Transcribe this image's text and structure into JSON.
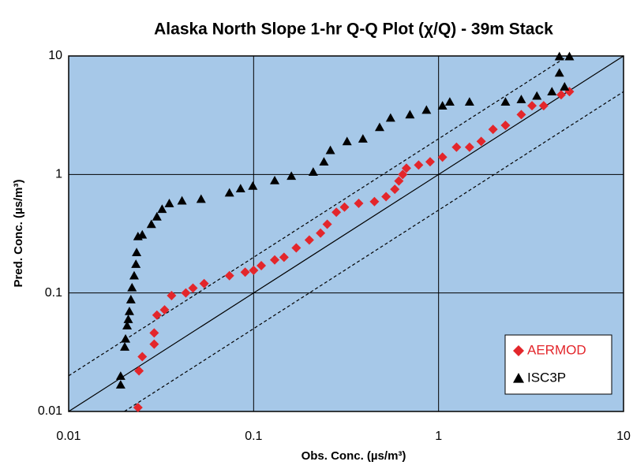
{
  "chart_data": {
    "type": "scatter",
    "title": "Alaska North Slope 1-hr Q-Q Plot (χ/Q) - 39m Stack",
    "x_label": "Obs. Conc. (µs/m³)",
    "y_label": "Pred. Conc. (µs/m³)",
    "log_x": true,
    "log_y": true,
    "grid": true,
    "plot_background": "#a6c8e8",
    "xlim": [
      0.01,
      10
    ],
    "ylim": [
      0.01,
      10
    ],
    "xticks": [
      0.01,
      0.1,
      1,
      10
    ],
    "yticks": [
      0.01,
      0.1,
      1,
      10
    ],
    "legend": "lower right",
    "series": [
      {
        "name": "AERMOD",
        "color": "#e3262b",
        "marker": "diamond",
        "x": [
          0.0237,
          0.024,
          0.025,
          0.029,
          0.029,
          0.03,
          0.033,
          0.036,
          0.043,
          0.047,
          0.054,
          0.074,
          0.09,
          0.1,
          0.11,
          0.13,
          0.146,
          0.17,
          0.2,
          0.23,
          0.25,
          0.28,
          0.31,
          0.37,
          0.45,
          0.52,
          0.58,
          0.61,
          0.64,
          0.67,
          0.78,
          0.9,
          1.05,
          1.25,
          1.47,
          1.7,
          1.97,
          2.3,
          2.8,
          3.2,
          3.7,
          4.6,
          5.1
        ],
        "values": [
          0.0108,
          0.022,
          0.029,
          0.037,
          0.046,
          0.065,
          0.072,
          0.095,
          0.1,
          0.11,
          0.12,
          0.14,
          0.15,
          0.155,
          0.17,
          0.19,
          0.2,
          0.24,
          0.28,
          0.32,
          0.38,
          0.48,
          0.53,
          0.57,
          0.59,
          0.65,
          0.75,
          0.88,
          1.0,
          1.13,
          1.2,
          1.28,
          1.4,
          1.7,
          1.7,
          1.9,
          2.4,
          2.6,
          3.2,
          3.8,
          3.8,
          4.7,
          5.0
        ]
      },
      {
        "name": "ISC3P",
        "color": "#000000",
        "marker": "triangle",
        "x": [
          0.0191,
          0.0191,
          0.0201,
          0.0203,
          0.0207,
          0.021,
          0.0213,
          0.0217,
          0.022,
          0.0226,
          0.0231,
          0.0233,
          0.0237,
          0.025,
          0.028,
          0.03,
          0.032,
          0.035,
          0.041,
          0.052,
          0.074,
          0.085,
          0.099,
          0.13,
          0.16,
          0.21,
          0.24,
          0.26,
          0.32,
          0.39,
          0.48,
          0.55,
          0.7,
          0.86,
          1.05,
          1.15,
          1.47,
          2.3,
          2.8,
          3.4,
          4.1,
          4.8,
          4.5,
          4.5,
          5.1
        ],
        "values": [
          0.0168,
          0.0199,
          0.0351,
          0.041,
          0.053,
          0.06,
          0.07,
          0.088,
          0.111,
          0.14,
          0.175,
          0.22,
          0.3,
          0.31,
          0.38,
          0.44,
          0.51,
          0.57,
          0.6,
          0.62,
          0.7,
          0.76,
          0.8,
          0.89,
          0.97,
          1.05,
          1.28,
          1.6,
          1.9,
          2.0,
          2.5,
          3.0,
          3.2,
          3.5,
          3.8,
          4.1,
          4.1,
          4.1,
          4.3,
          4.6,
          5.0,
          5.5,
          7.2,
          9.9,
          9.9
        ]
      }
    ]
  }
}
